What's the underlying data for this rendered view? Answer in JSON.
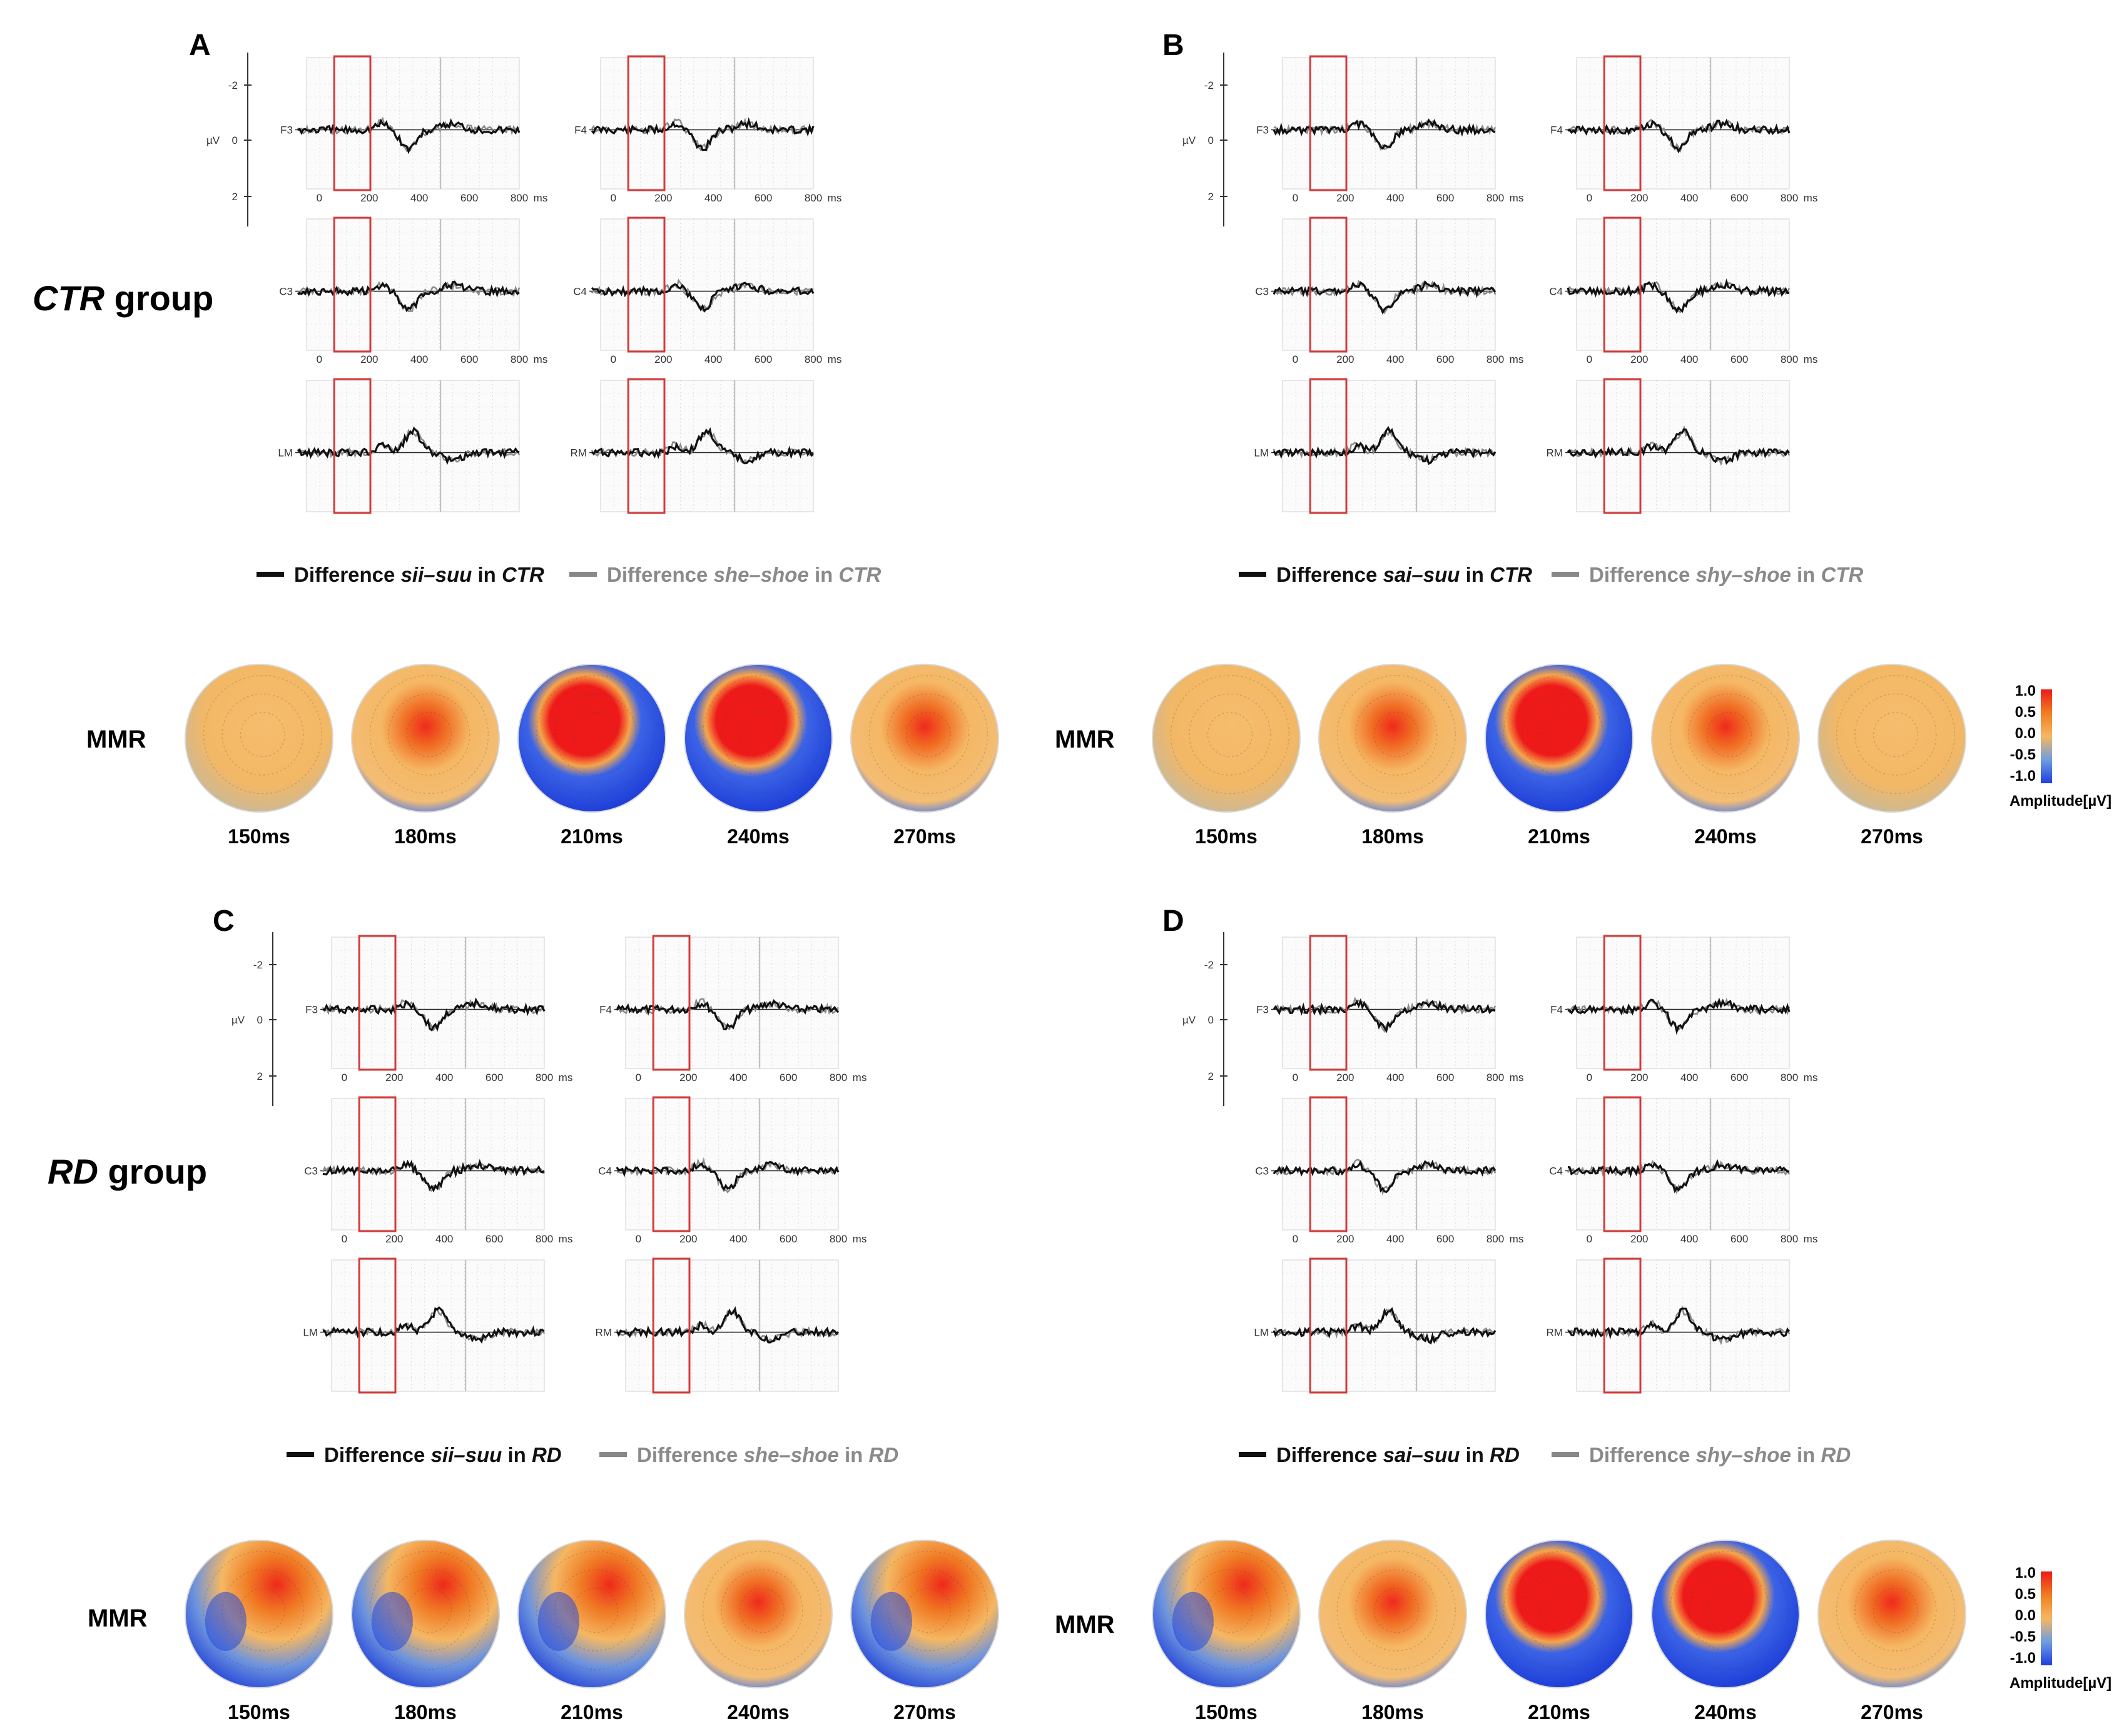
{
  "figure": {
    "group_labels": [
      {
        "id": "ctr",
        "italic": "CTR",
        "rest": " group"
      },
      {
        "id": "rd",
        "italic": "RD",
        "rest": " group"
      }
    ],
    "channel_rows": [
      [
        "F3",
        "F4"
      ],
      [
        "C3",
        "C4"
      ],
      [
        "LM",
        "RM"
      ]
    ],
    "yaxis": {
      "unit": "µV",
      "ticks": [
        "-2",
        "0",
        "2"
      ]
    },
    "xaxis": {
      "ticks": [
        "0",
        "200",
        "400",
        "600",
        "800"
      ],
      "unit": "ms"
    },
    "mmr_label": "MMR",
    "colorbar": {
      "ticks": [
        "1.0",
        "0.5",
        "0.0",
        "-0.5",
        "-1.0"
      ],
      "title": "Amplitude[µV]",
      "colors": [
        "#1e3fe0",
        "#6f9de0",
        "#f5b763",
        "#f07d20",
        "#ee1a1a"
      ]
    },
    "panels": [
      {
        "id": "A",
        "letter": "A",
        "legend_black": {
          "pre": "Difference ",
          "em": "sii–suu",
          "post": " in ",
          "em2": "CTR"
        },
        "legend_gray": {
          "pre": "Difference ",
          "em": "she–shoe",
          "post": " in ",
          "em2": "CTR"
        },
        "topomaps": [
          {
            "time": "150ms",
            "pattern": "neutral"
          },
          {
            "time": "180ms",
            "pattern": "weak"
          },
          {
            "time": "210ms",
            "pattern": "strong"
          },
          {
            "time": "240ms",
            "pattern": "strong"
          },
          {
            "time": "270ms",
            "pattern": "weak"
          }
        ]
      },
      {
        "id": "B",
        "letter": "B",
        "legend_black": {
          "pre": "Difference ",
          "em": "sai–suu",
          "post": " in ",
          "em2": "CTR"
        },
        "legend_gray": {
          "pre": "Difference ",
          "em": "shy–shoe",
          "post": " in ",
          "em2": "CTR"
        },
        "topomaps": [
          {
            "time": "150ms",
            "pattern": "neutral"
          },
          {
            "time": "180ms",
            "pattern": "weak"
          },
          {
            "time": "210ms",
            "pattern": "strong"
          },
          {
            "time": "240ms",
            "pattern": "weak"
          },
          {
            "time": "270ms",
            "pattern": "neutral"
          }
        ]
      },
      {
        "id": "C",
        "letter": "C",
        "legend_black": {
          "pre": "Difference ",
          "em": "sii–suu",
          "post": " in ",
          "em2": "RD"
        },
        "legend_gray": {
          "pre": "Difference ",
          "em": "she–shoe",
          "post": " in ",
          "em2": "RD"
        },
        "topomaps": [
          {
            "time": "150ms",
            "pattern": "mixed"
          },
          {
            "time": "180ms",
            "pattern": "mixed"
          },
          {
            "time": "210ms",
            "pattern": "mixed"
          },
          {
            "time": "240ms",
            "pattern": "weak"
          },
          {
            "time": "270ms",
            "pattern": "mixed"
          }
        ]
      },
      {
        "id": "D",
        "letter": "D",
        "legend_black": {
          "pre": "Difference ",
          "em": "sai–suu",
          "post": " in ",
          "em2": "RD"
        },
        "legend_gray": {
          "pre": "Difference ",
          "em": "shy–shoe",
          "post": " in ",
          "em2": "RD"
        },
        "topomaps": [
          {
            "time": "150ms",
            "pattern": "mixed"
          },
          {
            "time": "180ms",
            "pattern": "weak"
          },
          {
            "time": "210ms",
            "pattern": "strong"
          },
          {
            "time": "240ms",
            "pattern": "strong"
          },
          {
            "time": "270ms",
            "pattern": "weak"
          }
        ]
      }
    ]
  }
}
